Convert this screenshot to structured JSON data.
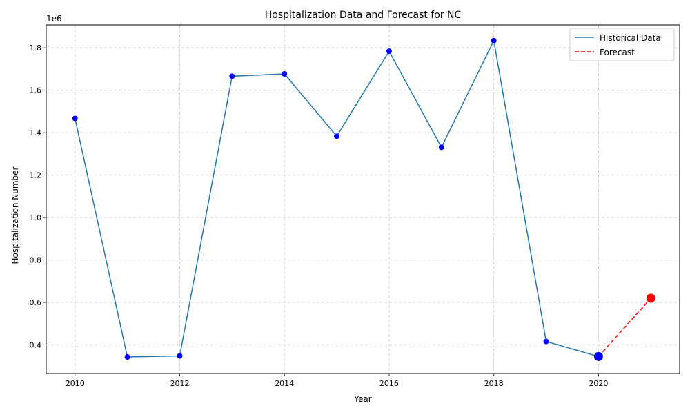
{
  "chart_data": {
    "type": "line",
    "title": "Hospitalization Data and Forecast for NC",
    "xlabel": "Year",
    "ylabel": "Hospitalization Number",
    "y_offset_label": "1e6",
    "xlim": [
      2009.45,
      2021.55
    ],
    "ylim": [
      0.265,
      1.908
    ],
    "x_ticks": [
      2010,
      2012,
      2014,
      2016,
      2018,
      2020
    ],
    "y_ticks": [
      0.4,
      0.6,
      0.8,
      1.0,
      1.2,
      1.4,
      1.6,
      1.8
    ],
    "grid": true,
    "legend_position": "top-right",
    "series": [
      {
        "name": "Historical Data",
        "color": "#1f77b4",
        "line_style": "solid",
        "marker_color": "#0000ff",
        "x": [
          2010,
          2011,
          2012,
          2013,
          2014,
          2015,
          2016,
          2017,
          2018,
          2019,
          2020
        ],
        "y": [
          1.467,
          0.343,
          0.348,
          1.666,
          1.677,
          1.383,
          1.784,
          1.331,
          1.834,
          0.416,
          0.345
        ]
      },
      {
        "name": "Forecast",
        "color": "#ff0000",
        "line_style": "dashed",
        "x": [
          2020,
          2021
        ],
        "y": [
          0.345,
          0.62
        ]
      }
    ],
    "highlight_points": [
      {
        "x": 2020,
        "y": 0.345,
        "color": "#0000ff"
      },
      {
        "x": 2021,
        "y": 0.62,
        "color": "#ff0000"
      }
    ]
  }
}
